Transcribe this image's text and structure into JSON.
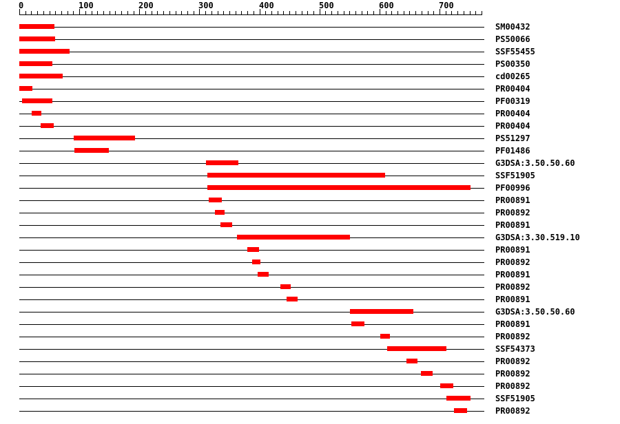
{
  "figure": {
    "description": "Protein sequence signature match diagram",
    "background": "#ffffff"
  },
  "colors": {
    "bar": "#ff0000",
    "axis": "#000000",
    "text": "#000000"
  },
  "chart_data": {
    "type": "bar",
    "orientation": "horizontal",
    "title": "",
    "xlabel": "",
    "ylabel": "",
    "legend": "none",
    "grid": false,
    "axis": {
      "min": 0,
      "max": 775,
      "major_tick_interval": 100,
      "major_tick_labels": [
        "0",
        "100",
        "200",
        "300",
        "400",
        "500",
        "600",
        "700"
      ],
      "minor_tick_interval": 10,
      "last_tick": 770
    },
    "rows": [
      {
        "label": "SM00432",
        "start": 1,
        "end": 59
      },
      {
        "label": "PS50066",
        "start": 1,
        "end": 60
      },
      {
        "label": "SSF55455",
        "start": 1,
        "end": 84
      },
      {
        "label": "PS00350",
        "start": 1,
        "end": 55
      },
      {
        "label": "cd00265",
        "start": 1,
        "end": 72
      },
      {
        "label": "PR00404",
        "start": 1,
        "end": 22
      },
      {
        "label": "PF00319",
        "start": 6,
        "end": 55
      },
      {
        "label": "PR00404",
        "start": 22,
        "end": 37
      },
      {
        "label": "PR00404",
        "start": 37,
        "end": 57
      },
      {
        "label": "PS51297",
        "start": 92,
        "end": 193
      },
      {
        "label": "PF01486",
        "start": 93,
        "end": 149
      },
      {
        "label": "G3DSA:3.50.50.60",
        "start": 312,
        "end": 365
      },
      {
        "label": "SSF51905",
        "start": 314,
        "end": 610
      },
      {
        "label": "PF00996",
        "start": 314,
        "end": 752
      },
      {
        "label": "PR00891",
        "start": 317,
        "end": 337
      },
      {
        "label": "PR00892",
        "start": 327,
        "end": 342
      },
      {
        "label": "PR00891",
        "start": 336,
        "end": 355
      },
      {
        "label": "G3DSA:3.30.519.10",
        "start": 364,
        "end": 551
      },
      {
        "label": "PR00891",
        "start": 381,
        "end": 399
      },
      {
        "label": "PR00892",
        "start": 389,
        "end": 402
      },
      {
        "label": "PR00891",
        "start": 398,
        "end": 416
      },
      {
        "label": "PR00892",
        "start": 436,
        "end": 452
      },
      {
        "label": "PR00891",
        "start": 446,
        "end": 464
      },
      {
        "label": "G3DSA:3.50.50.60",
        "start": 552,
        "end": 657
      },
      {
        "label": "PR00891",
        "start": 554,
        "end": 575
      },
      {
        "label": "PR00892",
        "start": 602,
        "end": 618
      },
      {
        "label": "SSF54373",
        "start": 614,
        "end": 711
      },
      {
        "label": "PR00892",
        "start": 646,
        "end": 663
      },
      {
        "label": "PR00892",
        "start": 670,
        "end": 689
      },
      {
        "label": "PR00892",
        "start": 702,
        "end": 723
      },
      {
        "label": "SSF51905",
        "start": 713,
        "end": 752
      },
      {
        "label": "PR00892",
        "start": 725,
        "end": 746
      }
    ]
  }
}
